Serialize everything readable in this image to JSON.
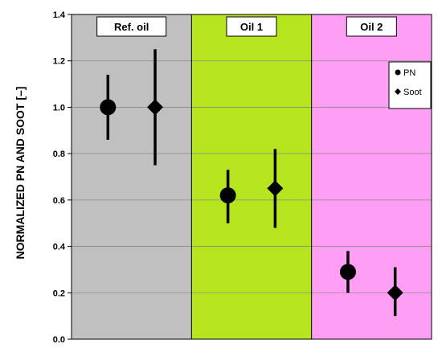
{
  "chart_data": {
    "type": "scatter",
    "ylabel": "NORMALIZED  PN AND SOOT [–]",
    "ylim": [
      0,
      1.4
    ],
    "yticks": [
      "0.0",
      "0.2",
      "0.4",
      "0.6",
      "0.8",
      "1.0",
      "1.2",
      "1.4"
    ],
    "grid": true,
    "legend_position": "top-right",
    "groups": [
      {
        "label": "Ref. oil",
        "color": "#c0c0c0"
      },
      {
        "label": "Oil 1",
        "color": "#b5e61d"
      },
      {
        "label": "Oil 2",
        "color": "#ff9ef5"
      }
    ],
    "series": [
      {
        "name": "PN",
        "marker": "circle",
        "values": [
          1.0,
          0.62,
          0.29
        ],
        "err_low": [
          0.86,
          0.5,
          0.2
        ],
        "err_high": [
          1.14,
          0.73,
          0.38
        ]
      },
      {
        "name": "Soot",
        "marker": "diamond",
        "values": [
          1.0,
          0.65,
          0.2
        ],
        "err_low": [
          0.75,
          0.48,
          0.1
        ],
        "err_high": [
          1.25,
          0.82,
          0.31
        ]
      }
    ]
  }
}
